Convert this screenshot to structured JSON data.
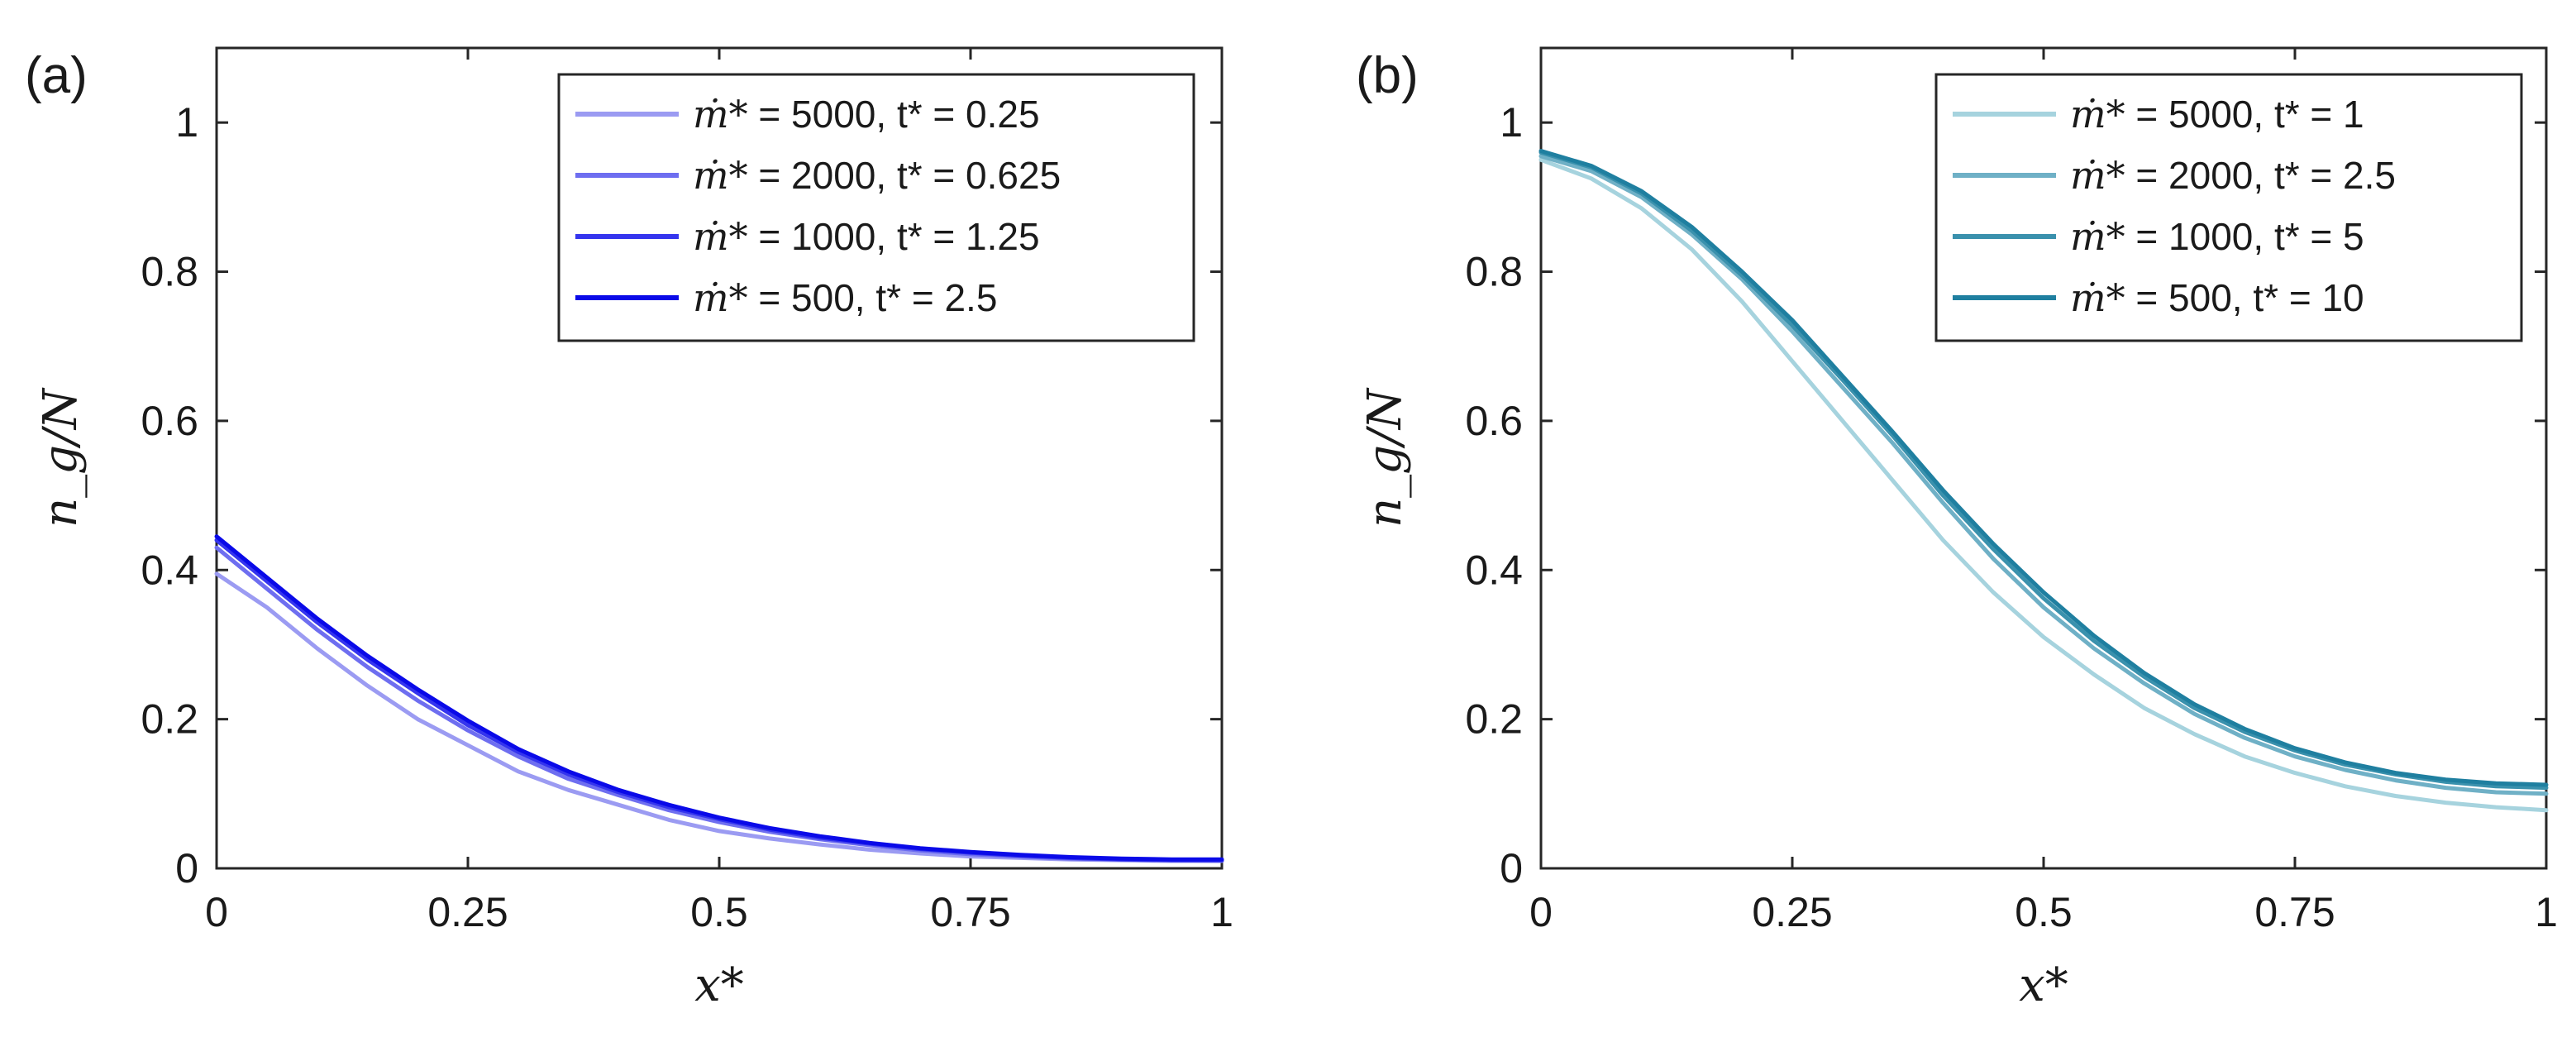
{
  "chart_data": [
    {
      "type": "line",
      "panel_label": "(a)",
      "xlabel": "x*",
      "ylabel": "n_g/N",
      "xlim": [
        0,
        1
      ],
      "ylim": [
        0,
        1.1
      ],
      "xticks": [
        0,
        0.25,
        0.5,
        0.75,
        1
      ],
      "xtick_labels": [
        "0",
        "0.25",
        "0.5",
        "0.75",
        "1"
      ],
      "yticks": [
        0,
        0.2,
        0.4,
        0.6,
        0.8,
        1
      ],
      "ytick_labels": [
        "0",
        "0.2",
        "0.4",
        "0.6",
        "0.8",
        "1"
      ],
      "legend_position": "top-right",
      "x": [
        0,
        0.05,
        0.1,
        0.15,
        0.2,
        0.25,
        0.3,
        0.35,
        0.4,
        0.45,
        0.5,
        0.55,
        0.6,
        0.65,
        0.7,
        0.75,
        0.8,
        0.85,
        0.9,
        0.95,
        1
      ],
      "series": [
        {
          "name": "ṁ* = 5000, t* = 0.25",
          "m_label": "ṁ*",
          "rest_label": "= 5000, t* = 0.25",
          "color": "#9b9bf2",
          "values": [
            0.395,
            0.35,
            0.295,
            0.245,
            0.2,
            0.165,
            0.13,
            0.105,
            0.085,
            0.065,
            0.05,
            0.04,
            0.032,
            0.025,
            0.02,
            0.016,
            0.014,
            0.012,
            0.011,
            0.01,
            0.01
          ]
        },
        {
          "name": "ṁ* = 2000, t* = 0.625",
          "m_label": "ṁ*",
          "rest_label": "= 2000, t* = 0.625",
          "color": "#6e6ef0",
          "values": [
            0.43,
            0.375,
            0.32,
            0.27,
            0.225,
            0.185,
            0.15,
            0.12,
            0.098,
            0.078,
            0.062,
            0.049,
            0.039,
            0.031,
            0.024,
            0.019,
            0.016,
            0.013,
            0.012,
            0.011,
            0.01
          ]
        },
        {
          "name": "ṁ* = 1000, t* = 1.25",
          "m_label": "ṁ*",
          "rest_label": "= 1000, t* = 1.25",
          "color": "#3535ee",
          "values": [
            0.44,
            0.385,
            0.33,
            0.28,
            0.235,
            0.192,
            0.156,
            0.126,
            0.102,
            0.082,
            0.066,
            0.052,
            0.041,
            0.033,
            0.026,
            0.021,
            0.017,
            0.014,
            0.012,
            0.011,
            0.011
          ]
        },
        {
          "name": "ṁ* = 500,   t* = 2.5",
          "m_label": "ṁ*",
          "rest_label": "= 500,   t* = 2.5",
          "color": "#0a0ae8",
          "values": [
            0.445,
            0.39,
            0.335,
            0.285,
            0.24,
            0.198,
            0.16,
            0.13,
            0.105,
            0.085,
            0.068,
            0.054,
            0.043,
            0.034,
            0.027,
            0.022,
            0.018,
            0.015,
            0.013,
            0.012,
            0.012
          ]
        }
      ]
    },
    {
      "type": "line",
      "panel_label": "(b)",
      "xlabel": "x*",
      "ylabel": "n_g/N",
      "xlim": [
        0,
        1
      ],
      "ylim": [
        0,
        1.1
      ],
      "xticks": [
        0,
        0.25,
        0.5,
        0.75,
        1
      ],
      "xtick_labels": [
        "0",
        "0.25",
        "0.5",
        "0.75",
        "1"
      ],
      "yticks": [
        0,
        0.2,
        0.4,
        0.6,
        0.8,
        1
      ],
      "ytick_labels": [
        "0",
        "0.2",
        "0.4",
        "0.6",
        "0.8",
        "1"
      ],
      "legend_position": "top-right",
      "x": [
        0,
        0.05,
        0.1,
        0.15,
        0.2,
        0.25,
        0.3,
        0.35,
        0.4,
        0.45,
        0.5,
        0.55,
        0.6,
        0.65,
        0.7,
        0.75,
        0.8,
        0.85,
        0.9,
        0.95,
        1
      ],
      "series": [
        {
          "name": "ṁ* = 5000, t* = 1",
          "m_label": "ṁ*",
          "rest_label": "= 5000, t* = 1",
          "color": "#a6d3de",
          "values": [
            0.95,
            0.925,
            0.885,
            0.83,
            0.76,
            0.68,
            0.6,
            0.52,
            0.44,
            0.37,
            0.31,
            0.26,
            0.215,
            0.18,
            0.15,
            0.128,
            0.11,
            0.097,
            0.088,
            0.082,
            0.078
          ]
        },
        {
          "name": "ṁ* = 2000, t* = 2.5",
          "m_label": "ṁ*",
          "rest_label": "= 2000, t* = 2.5",
          "color": "#6fb0c6",
          "values": [
            0.955,
            0.935,
            0.9,
            0.85,
            0.79,
            0.72,
            0.645,
            0.57,
            0.49,
            0.415,
            0.35,
            0.295,
            0.248,
            0.207,
            0.175,
            0.15,
            0.132,
            0.118,
            0.108,
            0.102,
            0.1
          ]
        },
        {
          "name": "ṁ* = 1000, t* = 5",
          "m_label": "ṁ*",
          "rest_label": "= 1000, t* = 5",
          "color": "#3a91ad",
          "values": [
            0.96,
            0.94,
            0.905,
            0.855,
            0.795,
            0.728,
            0.655,
            0.58,
            0.5,
            0.428,
            0.362,
            0.305,
            0.257,
            0.215,
            0.183,
            0.158,
            0.139,
            0.126,
            0.116,
            0.11,
            0.108
          ]
        },
        {
          "name": "ṁ* = 500,   t* = 10",
          "m_label": "ṁ*",
          "rest_label": "= 500,   t* = 10",
          "color": "#1f7fa0",
          "values": [
            0.962,
            0.942,
            0.908,
            0.86,
            0.8,
            0.735,
            0.66,
            0.585,
            0.507,
            0.435,
            0.37,
            0.312,
            0.262,
            0.22,
            0.187,
            0.161,
            0.142,
            0.128,
            0.119,
            0.114,
            0.112
          ]
        }
      ]
    }
  ]
}
